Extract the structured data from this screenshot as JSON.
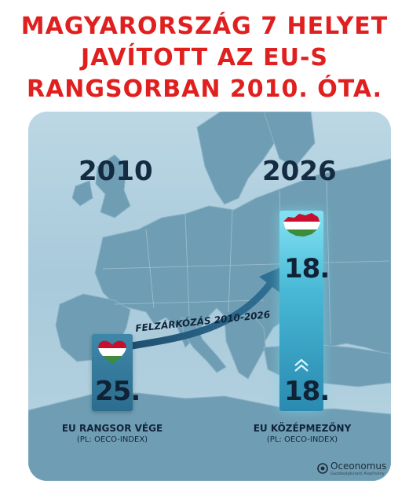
{
  "headline": {
    "line1": "MAGYARORSZÁG 7 HELYET",
    "line2": "JAVÍTOTT AZ EU-S",
    "line3": "RANGSORBAN 2010. ÓTA."
  },
  "years": {
    "left": "2010",
    "right": "2026"
  },
  "ranks": {
    "start": "25.",
    "target": "18.",
    "current": "18."
  },
  "progress": {
    "from_rank": 25,
    "to_rank": 18,
    "improvement": 7
  },
  "arrow_label": "FELZÁRKÓZÁS 2010-2026",
  "captions": {
    "left_main": "EU RANGSOR VÉGE",
    "left_sub": "(PL: OECO-INDEX)",
    "right_main": "EU KÖZÉPMEZŐNY",
    "right_sub": "(PL: OECO-INDEX)"
  },
  "brand": {
    "name": "Oceonomus",
    "tagline": "Gazdaságkutató Alapítvány"
  },
  "colors": {
    "headline": "#e0201f",
    "map_bg": "#a8cadb",
    "land": "#6f9eb4",
    "dark_text": "#10233a",
    "bar_left": "#2b6d8f",
    "bar_right": "#48b8d6",
    "flag_red": "#c8102e",
    "flag_white": "#ffffff",
    "flag_green": "#3d8b3d"
  },
  "icons": [
    "hungary-heart-icon",
    "hungary-map-flag-icon",
    "double-chevron-up-icon",
    "oceonomus-logo-icon"
  ]
}
